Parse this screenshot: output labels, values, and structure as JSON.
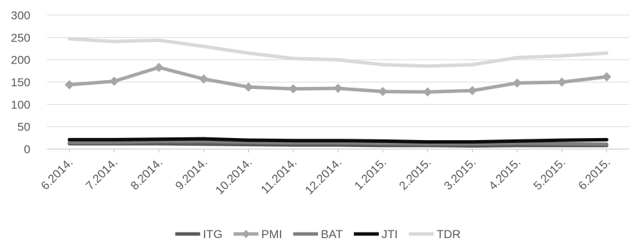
{
  "chart_data": {
    "type": "line",
    "categories": [
      "6.2014.",
      "7.2014.",
      "8.2014.",
      "9.2014.",
      "10.2014.",
      "11.2014.",
      "12.2014.",
      "1.2015.",
      "2.2015.",
      "3.2015.",
      "4.2015.",
      "5.2015.",
      "6.2015."
    ],
    "series": [
      {
        "name": "ITG",
        "color": "#595959",
        "marker": "none",
        "values": [
          12,
          12,
          12,
          11,
          10,
          9,
          9,
          8,
          8,
          7,
          8,
          8,
          8
        ]
      },
      {
        "name": "PMI",
        "color": "#a6a6a6",
        "marker": "diamond",
        "values": [
          144,
          152,
          183,
          157,
          139,
          135,
          136,
          129,
          128,
          131,
          148,
          150,
          162
        ]
      },
      {
        "name": "BAT",
        "color": "#7f7f7f",
        "marker": "none",
        "values": [
          15,
          15,
          17,
          17,
          15,
          14,
          14,
          13,
          12,
          12,
          13,
          12,
          11
        ]
      },
      {
        "name": "JTI",
        "color": "#0d0d0d",
        "marker": "none",
        "values": [
          21,
          21,
          22,
          23,
          20,
          19,
          19,
          18,
          16,
          16,
          18,
          20,
          21
        ]
      },
      {
        "name": "TDR",
        "color": "#d9d9d9",
        "marker": "none",
        "values": [
          247,
          241,
          244,
          230,
          215,
          203,
          200,
          189,
          186,
          189,
          205,
          209,
          215
        ]
      }
    ],
    "yticks": [
      0,
      50,
      100,
      150,
      200,
      250,
      300
    ],
    "ylim": [
      0,
      300
    ],
    "title": "",
    "xlabel": "",
    "ylabel": "",
    "grid": true,
    "legend_position": "bottom"
  }
}
